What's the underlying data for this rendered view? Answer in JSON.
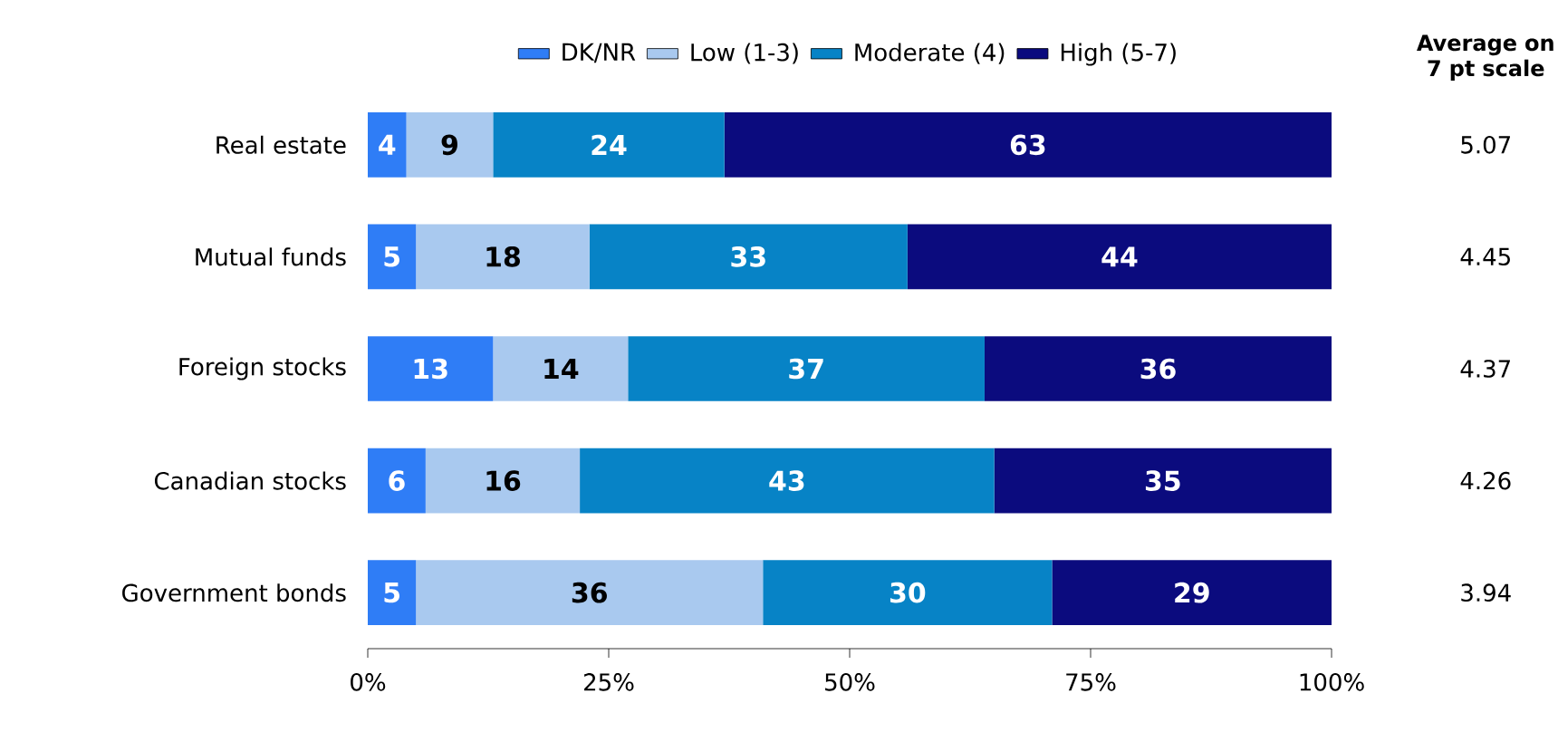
{
  "chart_data": {
    "type": "bar",
    "orientation": "horizontal",
    "stacked": true,
    "data_labels": true,
    "legend": "top",
    "grid": false,
    "categories": [
      "Real estate",
      "Mutual funds",
      "Foreign stocks",
      "Canadian stocks",
      "Government bonds"
    ],
    "series": [
      {
        "name": "DK/NR",
        "color": "#2f7df6",
        "values": [
          4,
          5,
          13,
          6,
          5
        ]
      },
      {
        "name": "Low (1-3)",
        "color": "#a9c9ef",
        "values": [
          9,
          18,
          14,
          16,
          36
        ]
      },
      {
        "name": "Moderate (4)",
        "color": "#0783c6",
        "values": [
          24,
          33,
          37,
          43,
          30
        ]
      },
      {
        "name": "High (5-7)",
        "color": "#0b0b7e",
        "values": [
          63,
          44,
          36,
          35,
          29
        ]
      }
    ],
    "xlim": [
      0,
      100
    ],
    "xticks": [
      {
        "value": 0,
        "label": "0%"
      },
      {
        "value": 25,
        "label": "25%"
      },
      {
        "value": 50,
        "label": "50%"
      },
      {
        "value": 75,
        "label": "75%"
      },
      {
        "value": 100,
        "label": "100%"
      }
    ],
    "annotations": [
      "Average on 7 pt scale",
      "5.07",
      "4.45",
      "4.37",
      "4.26",
      "3.94"
    ]
  }
}
